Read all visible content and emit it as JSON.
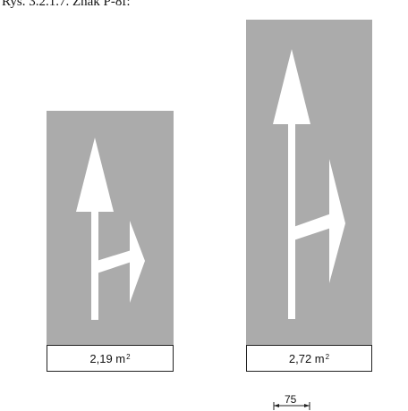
{
  "caption": "Rys. 3.2.1.7.   Znak P-8f:",
  "signs": [
    {
      "area_value": "2,19 m",
      "area_unit_sup": "2"
    },
    {
      "area_value": "2,72 m",
      "area_unit_sup": "2"
    }
  ],
  "scale_dimension": "75",
  "colors": {
    "road_surface": "#ababab",
    "marking": "#ffffff",
    "outline": "#222222"
  }
}
